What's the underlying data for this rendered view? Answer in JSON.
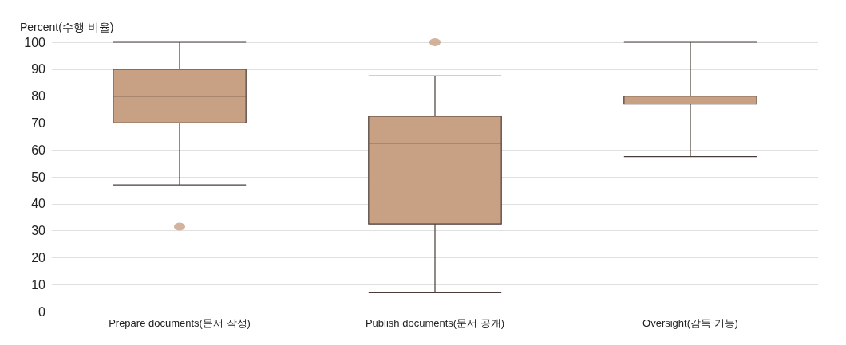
{
  "chart_data": {
    "type": "box",
    "ylabel": "Percent(수행 비율)",
    "categories": [
      "Prepare documents(문서 작성)",
      "Publish documents(문서 공개)",
      "Oversight(감독 기능)"
    ],
    "color": "#c8a084",
    "boxes": [
      {
        "low": 47,
        "q1": 70,
        "median": 80,
        "q3": 90,
        "high": 100,
        "outliers": [
          31.5
        ]
      },
      {
        "low": 7,
        "q1": 32.5,
        "median": 62.5,
        "q3": 72.5,
        "high": 87.5,
        "outliers": [
          100
        ]
      },
      {
        "low": 57.5,
        "q1": 77,
        "median": 80,
        "q3": 80,
        "high": 100
      }
    ],
    "ylim": [
      0,
      100
    ],
    "yticks": [
      0,
      10,
      20,
      30,
      40,
      50,
      60,
      70,
      80,
      90,
      100
    ],
    "grid": "y"
  }
}
